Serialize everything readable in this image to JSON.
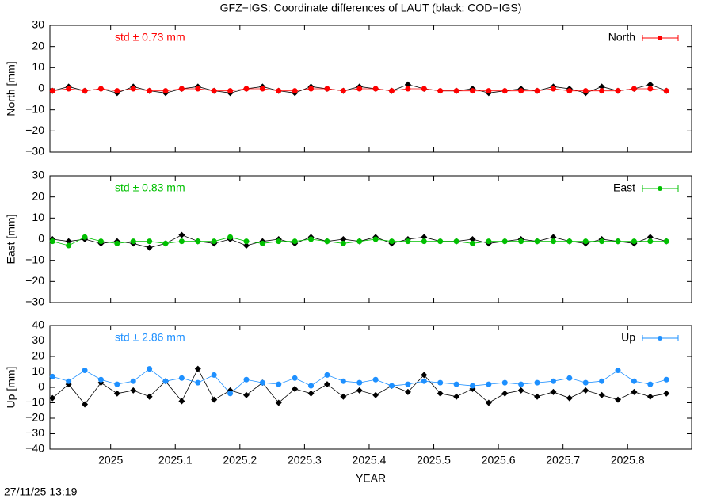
{
  "title": "GFZ−IGS: Coordinate differences of LAUT (black: COD−IGS)",
  "timestamp": "27/11/25 13:19",
  "chart_data": [
    {
      "type": "line",
      "ylabel": "North [mm]",
      "annotation": "std ± 0.73 mm",
      "legend": "top-right",
      "xlim": [
        2024.906,
        2025.899
      ],
      "xticks": [
        2025,
        2025.1,
        2025.2,
        2025.3,
        2025.4,
        2025.5,
        2025.6,
        2025.7,
        2025.8
      ],
      "ylim": [
        -30,
        30
      ],
      "yticks": [
        {
          "value": -30,
          "label": "−30"
        },
        {
          "value": -20,
          "label": "−20"
        },
        {
          "value": -10,
          "label": "−10"
        },
        0,
        10,
        20,
        30
      ],
      "x": [
        2024.91,
        2024.935,
        2024.96,
        2024.985,
        2025.01,
        2025.035,
        2025.06,
        2025.085,
        2025.11,
        2025.135,
        2025.16,
        2025.185,
        2025.21,
        2025.235,
        2025.26,
        2025.285,
        2025.31,
        2025.335,
        2025.36,
        2025.385,
        2025.41,
        2025.435,
        2025.46,
        2025.485,
        2025.51,
        2025.535,
        2025.56,
        2025.585,
        2025.61,
        2025.635,
        2025.66,
        2025.685,
        2025.71,
        2025.735,
        2025.76,
        2025.785,
        2025.81,
        2025.835,
        2025.86
      ],
      "series": [
        {
          "color": "#000000",
          "marker": "diamond",
          "values": [
            -1,
            1,
            -1,
            0,
            -2,
            1,
            -1,
            -2,
            0,
            1,
            -1,
            -2,
            0,
            1,
            -1,
            -2,
            1,
            0,
            -1,
            1,
            0,
            -1,
            2,
            0,
            -1,
            -1,
            0,
            -2,
            -1,
            0,
            -1,
            1,
            0,
            -2,
            1,
            -1,
            0,
            2,
            -1
          ]
        },
        {
          "name": "North",
          "color": "#ff0000",
          "marker": "circle",
          "values": [
            -1,
            0,
            -1,
            0,
            -1,
            0,
            -1,
            -1,
            0,
            0,
            -1,
            -1,
            0,
            0,
            -1,
            -1,
            0,
            0,
            -1,
            0,
            0,
            -1,
            0,
            0,
            -1,
            -1,
            -1,
            -1,
            -1,
            -1,
            -1,
            0,
            -1,
            -1,
            -1,
            -1,
            0,
            0,
            -1
          ]
        }
      ]
    },
    {
      "type": "line",
      "ylabel": "East [mm]",
      "annotation": "std ± 0.83 mm",
      "legend": "top-right",
      "xlim": [
        2024.906,
        2025.899
      ],
      "xticks": [
        2025,
        2025.1,
        2025.2,
        2025.3,
        2025.4,
        2025.5,
        2025.6,
        2025.7,
        2025.8
      ],
      "ylim": [
        -30,
        30
      ],
      "yticks": [
        {
          "value": -30,
          "label": "−30"
        },
        {
          "value": -20,
          "label": "−20"
        },
        {
          "value": -10,
          "label": "−10"
        },
        0,
        10,
        20,
        30
      ],
      "x": [
        2024.91,
        2024.935,
        2024.96,
        2024.985,
        2025.01,
        2025.035,
        2025.06,
        2025.085,
        2025.11,
        2025.135,
        2025.16,
        2025.185,
        2025.21,
        2025.235,
        2025.26,
        2025.285,
        2025.31,
        2025.335,
        2025.36,
        2025.385,
        2025.41,
        2025.435,
        2025.46,
        2025.485,
        2025.51,
        2025.535,
        2025.56,
        2025.585,
        2025.61,
        2025.635,
        2025.66,
        2025.685,
        2025.71,
        2025.735,
        2025.76,
        2025.785,
        2025.81,
        2025.835,
        2025.86
      ],
      "series": [
        {
          "color": "#000000",
          "marker": "diamond",
          "values": [
            0,
            -1,
            0,
            -2,
            -1,
            -2,
            -4,
            -2,
            2,
            -1,
            -2,
            0,
            -3,
            -1,
            0,
            -2,
            1,
            -1,
            0,
            -1,
            1,
            -2,
            0,
            1,
            -1,
            -1,
            0,
            -2,
            -1,
            0,
            -1,
            1,
            -1,
            -2,
            0,
            -1,
            -2,
            1,
            -1
          ]
        },
        {
          "name": "East",
          "color": "#00c000",
          "marker": "circle",
          "values": [
            -1,
            -3,
            1,
            -1,
            -2,
            -1,
            -1,
            -2,
            -1,
            -1,
            -1,
            1,
            -1,
            -2,
            -1,
            -1,
            0,
            -1,
            -2,
            -1,
            0,
            -1,
            -1,
            -1,
            -1,
            -1,
            -2,
            -1,
            -1,
            -1,
            -1,
            -1,
            -1,
            -1,
            -1,
            -1,
            -1,
            -1,
            -1
          ]
        }
      ]
    },
    {
      "type": "line",
      "ylabel": "Up [mm]",
      "xlabel": "YEAR",
      "annotation": "std ± 2.86 mm",
      "legend": "top-right",
      "xlim": [
        2024.906,
        2025.899
      ],
      "xticks": [
        2025,
        2025.1,
        2025.2,
        2025.3,
        2025.4,
        2025.5,
        2025.6,
        2025.7,
        2025.8
      ],
      "ylim": [
        -40,
        40
      ],
      "yticks": [
        {
          "value": -40,
          "label": "−40"
        },
        {
          "value": -30,
          "label": "−30"
        },
        {
          "value": -20,
          "label": "−20"
        },
        {
          "value": -10,
          "label": "−10"
        },
        0,
        10,
        20,
        30,
        40
      ],
      "x": [
        2024.91,
        2024.935,
        2024.96,
        2024.985,
        2025.01,
        2025.035,
        2025.06,
        2025.085,
        2025.11,
        2025.135,
        2025.16,
        2025.185,
        2025.21,
        2025.235,
        2025.26,
        2025.285,
        2025.31,
        2025.335,
        2025.36,
        2025.385,
        2025.41,
        2025.435,
        2025.46,
        2025.485,
        2025.51,
        2025.535,
        2025.56,
        2025.585,
        2025.61,
        2025.635,
        2025.66,
        2025.685,
        2025.71,
        2025.735,
        2025.76,
        2025.785,
        2025.81,
        2025.835,
        2025.86
      ],
      "series": [
        {
          "color": "#000000",
          "marker": "diamond",
          "values": [
            -7,
            2,
            -11,
            3,
            -4,
            -2,
            -6,
            4,
            -9,
            12,
            -8,
            -2,
            -5,
            3,
            -10,
            -1,
            -4,
            2,
            -6,
            -2,
            -5,
            1,
            -3,
            8,
            -4,
            -6,
            -1,
            -10,
            -4,
            -2,
            -6,
            -3,
            -7,
            -2,
            -5,
            -8,
            -3,
            -6,
            -4
          ]
        },
        {
          "name": "Up",
          "color": "#1e90ff",
          "marker": "circle",
          "values": [
            7,
            4,
            11,
            5,
            2,
            4,
            12,
            4,
            6,
            3,
            8,
            -4,
            5,
            3,
            2,
            6,
            1,
            8,
            4,
            3,
            5,
            1,
            2,
            4,
            3,
            2,
            1,
            2,
            3,
            2,
            3,
            4,
            6,
            3,
            4,
            11,
            4,
            2,
            5
          ]
        }
      ]
    }
  ]
}
